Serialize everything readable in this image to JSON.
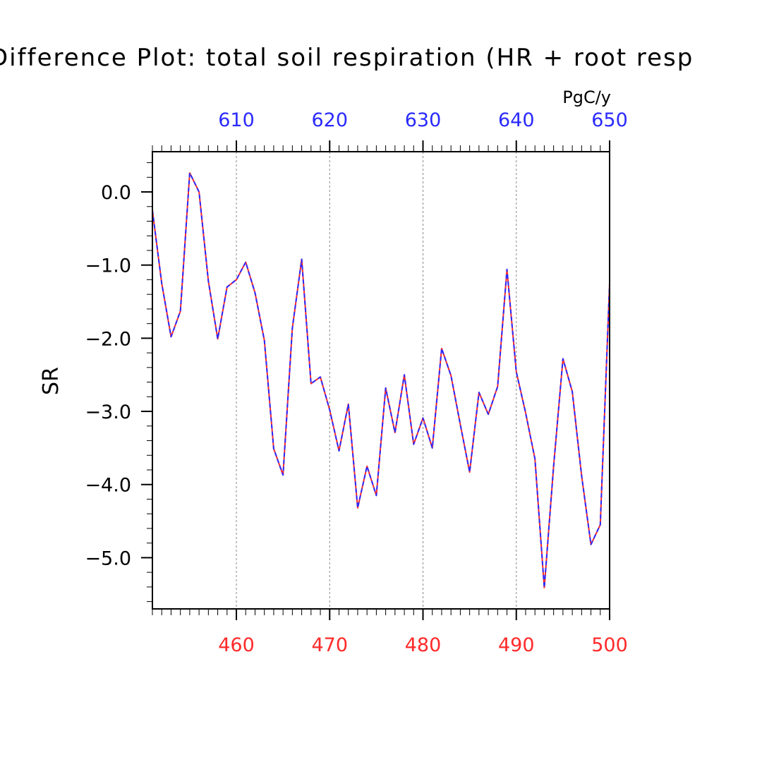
{
  "chart_data": {
    "type": "line",
    "title": "Difference Plot: total soil respiration (HR + root resp",
    "units": "PgC/y",
    "ylabel": "SR",
    "xlabel": "",
    "xlim": [
      451,
      500
    ],
    "ylim": [
      -5.7,
      0.55
    ],
    "x_ticks": [
      460,
      470,
      480,
      490,
      500
    ],
    "x_tick_labels": [
      "460",
      "470",
      "480",
      "490",
      "500"
    ],
    "x_top_ticks": [
      610,
      620,
      630,
      640,
      650
    ],
    "x_top_tick_labels": [
      "610",
      "620",
      "630",
      "640",
      "650"
    ],
    "x_top_offset": 150,
    "y_ticks": [
      0.0,
      -1.0,
      -2.0,
      -3.0,
      -4.0,
      -5.0
    ],
    "y_tick_labels": [
      "0.0",
      "−1.0",
      "−2.0",
      "−3.0",
      "−4.0",
      "−5.0"
    ],
    "grid": "dashed vertical lines at major x ticks",
    "colors": {
      "bottom_axis_labels": "#ff2a2a",
      "top_axis_labels": "#2a2aff",
      "series_a": "#ff2a2a",
      "series_b": "#2a2aff",
      "axes": "#000000",
      "grid": "#888888"
    },
    "x": [
      451,
      452,
      453,
      454,
      455,
      456,
      457,
      458,
      459,
      460,
      461,
      462,
      463,
      464,
      465,
      466,
      467,
      468,
      469,
      470,
      471,
      472,
      473,
      474,
      475,
      476,
      477,
      478,
      479,
      480,
      481,
      482,
      483,
      484,
      485,
      486,
      487,
      488,
      489,
      490,
      491,
      492,
      493,
      494,
      495,
      496,
      497,
      498,
      499,
      500
    ],
    "series": [
      {
        "values": [
          -0.25,
          -1.25,
          -1.98,
          -1.63,
          0.26,
          0.0,
          -1.22,
          -2.01,
          -1.3,
          -1.2,
          -0.96,
          -1.38,
          -2.03,
          -3.51,
          -3.87,
          -1.86,
          -0.92,
          -2.62,
          -2.53,
          -2.98,
          -3.54,
          -2.9,
          -4.32,
          -3.75,
          -4.15,
          -2.68,
          -3.29,
          -2.5,
          -3.45,
          -3.09,
          -3.5,
          -2.14,
          -2.51,
          -3.18,
          -3.83,
          -2.74,
          -3.04,
          -2.66,
          -1.06,
          -2.46,
          -3.02,
          -3.65,
          -5.41,
          -3.75,
          -2.28,
          -2.73,
          -3.88,
          -4.82,
          -4.55,
          -1.25
        ]
      },
      {
        "values": [
          -0.25,
          -1.25,
          -1.98,
          -1.63,
          0.26,
          0.0,
          -1.22,
          -2.01,
          -1.3,
          -1.2,
          -0.96,
          -1.38,
          -2.03,
          -3.51,
          -3.87,
          -1.86,
          -0.92,
          -2.62,
          -2.53,
          -2.98,
          -3.54,
          -2.9,
          -4.32,
          -3.75,
          -4.15,
          -2.68,
          -3.29,
          -2.5,
          -3.45,
          -3.09,
          -3.5,
          -2.14,
          -2.51,
          -3.18,
          -3.83,
          -2.74,
          -3.04,
          -2.66,
          -1.06,
          -2.46,
          -3.02,
          -3.65,
          -5.41,
          -3.75,
          -2.28,
          -2.73,
          -3.88,
          -4.82,
          -4.55,
          -1.25
        ]
      }
    ]
  }
}
